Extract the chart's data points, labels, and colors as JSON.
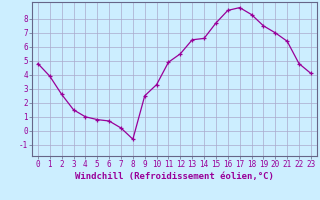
{
  "x": [
    0,
    1,
    2,
    3,
    4,
    5,
    6,
    7,
    8,
    9,
    10,
    11,
    12,
    13,
    14,
    15,
    16,
    17,
    18,
    19,
    20,
    21,
    22,
    23
  ],
  "y": [
    4.8,
    3.9,
    2.6,
    1.5,
    1.0,
    0.8,
    0.7,
    0.2,
    -0.6,
    2.5,
    3.3,
    4.9,
    5.5,
    6.5,
    6.6,
    7.7,
    8.6,
    8.8,
    8.3,
    7.5,
    7.0,
    6.4,
    4.8,
    4.1
  ],
  "line_color": "#990099",
  "marker": "+",
  "bg_color": "#cceeff",
  "grid_color": "#aaaacc",
  "xlabel": "Windchill (Refroidissement éolien,°C)",
  "xlim": [
    -0.5,
    23.5
  ],
  "ylim": [
    -1.8,
    9.2
  ],
  "yticks": [
    -1,
    0,
    1,
    2,
    3,
    4,
    5,
    6,
    7,
    8
  ],
  "xticks": [
    0,
    1,
    2,
    3,
    4,
    5,
    6,
    7,
    8,
    9,
    10,
    11,
    12,
    13,
    14,
    15,
    16,
    17,
    18,
    19,
    20,
    21,
    22,
    23
  ],
  "tick_label_fontsize": 5.5,
  "xlabel_fontsize": 6.5,
  "line_color2": "#880088",
  "spine_color": "#666688"
}
